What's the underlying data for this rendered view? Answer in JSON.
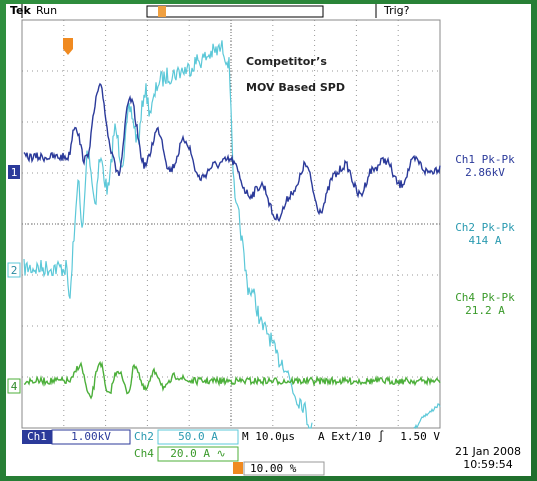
{
  "header": {
    "brand": "Tek",
    "state": "Run",
    "trigger_status": "Trig?"
  },
  "annotation": {
    "line1": "Competitor’s",
    "line2": "MOV Based SPD"
  },
  "channel_markers": [
    "1",
    "2",
    "4"
  ],
  "measurements": [
    {
      "label": "Ch1 Pk-Pk",
      "value": "2.86kV"
    },
    {
      "label": "Ch2 Pk-Pk",
      "value": "414 A"
    },
    {
      "label": "Ch4 Pk-Pk",
      "value": "21.2 A"
    }
  ],
  "settings": {
    "ch1_label": "Ch1",
    "ch1_scale": "1.00kV",
    "ch2_label": "Ch2",
    "ch2_scale": "50.0 A",
    "ch4_label": "Ch4",
    "ch4_scale": "20.0 A ∿",
    "timebase": "M 10.0µs",
    "trigger": "A Ext/10 ∫",
    "trigger_level": "1.50 V",
    "trigger_position": "10.00 %"
  },
  "timestamp": {
    "date": "21 Jan  2008",
    "time": "10:59:54"
  }
}
